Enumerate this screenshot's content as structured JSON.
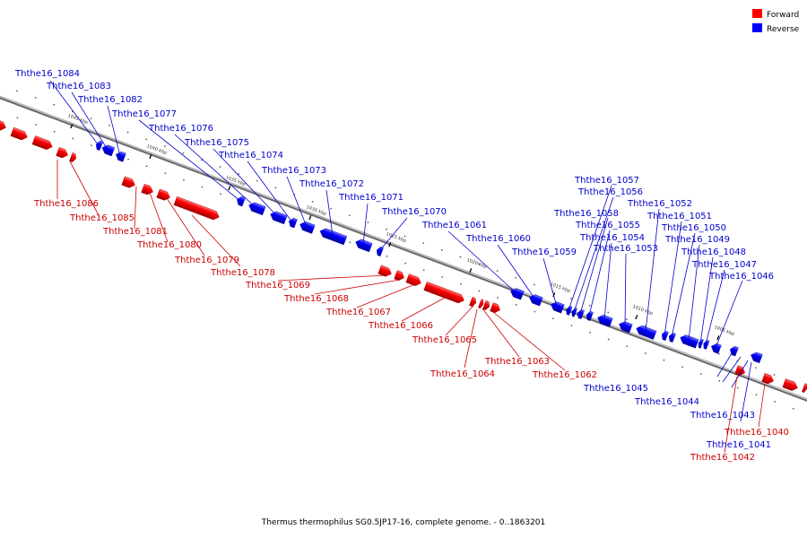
{
  "legend": [
    {
      "label": "Forward",
      "color": "#ff0000"
    },
    {
      "label": "Reverse",
      "color": "#0000ff"
    }
  ],
  "caption": "Thermus thermophilus SG0.5JP17-16, complete genome. - 0..1863201",
  "scale_ticks": [
    "1045 kbp",
    "1040 kbp",
    "1035 kbp",
    "1030 kbp",
    "1025 kbp",
    "1020 kbp",
    "1015 kbp",
    "1010 kbp",
    "1005 kbp"
  ],
  "genes": [
    {
      "name": "Ththe16_1084",
      "strand": "reverse"
    },
    {
      "name": "Ththe16_1083",
      "strand": "reverse"
    },
    {
      "name": "Ththe16_1082",
      "strand": "reverse"
    },
    {
      "name": "Ththe16_1077",
      "strand": "reverse"
    },
    {
      "name": "Ththe16_1076",
      "strand": "reverse"
    },
    {
      "name": "Ththe16_1075",
      "strand": "reverse"
    },
    {
      "name": "Ththe16_1074",
      "strand": "reverse"
    },
    {
      "name": "Ththe16_1073",
      "strand": "reverse"
    },
    {
      "name": "Ththe16_1072",
      "strand": "reverse"
    },
    {
      "name": "Ththe16_1071",
      "strand": "reverse"
    },
    {
      "name": "Ththe16_1070",
      "strand": "reverse"
    },
    {
      "name": "Ththe16_1061",
      "strand": "reverse"
    },
    {
      "name": "Ththe16_1060",
      "strand": "reverse"
    },
    {
      "name": "Ththe16_1059",
      "strand": "reverse"
    },
    {
      "name": "Ththe16_1057",
      "strand": "reverse"
    },
    {
      "name": "Ththe16_1056",
      "strand": "reverse"
    },
    {
      "name": "Ththe16_1058",
      "strand": "reverse"
    },
    {
      "name": "Ththe16_1055",
      "strand": "reverse"
    },
    {
      "name": "Ththe16_1054",
      "strand": "reverse"
    },
    {
      "name": "Ththe16_1053",
      "strand": "reverse"
    },
    {
      "name": "Ththe16_1052",
      "strand": "reverse"
    },
    {
      "name": "Ththe16_1051",
      "strand": "reverse"
    },
    {
      "name": "Ththe16_1050",
      "strand": "reverse"
    },
    {
      "name": "Ththe16_1049",
      "strand": "reverse"
    },
    {
      "name": "Ththe16_1048",
      "strand": "reverse"
    },
    {
      "name": "Ththe16_1047",
      "strand": "reverse"
    },
    {
      "name": "Ththe16_1046",
      "strand": "reverse"
    },
    {
      "name": "Ththe16_1045",
      "strand": "reverse"
    },
    {
      "name": "Ththe16_1044",
      "strand": "reverse"
    },
    {
      "name": "Ththe16_1043",
      "strand": "reverse"
    },
    {
      "name": "Ththe16_1041",
      "strand": "reverse"
    },
    {
      "name": "Ththe16_1086",
      "strand": "forward"
    },
    {
      "name": "Ththe16_1085",
      "strand": "forward"
    },
    {
      "name": "Ththe16_1081",
      "strand": "forward"
    },
    {
      "name": "Ththe16_1080",
      "strand": "forward"
    },
    {
      "name": "Ththe16_1079",
      "strand": "forward"
    },
    {
      "name": "Ththe16_1078",
      "strand": "forward"
    },
    {
      "name": "Ththe16_1069",
      "strand": "forward"
    },
    {
      "name": "Ththe16_1068",
      "strand": "forward"
    },
    {
      "name": "Ththe16_1067",
      "strand": "forward"
    },
    {
      "name": "Ththe16_1066",
      "strand": "forward"
    },
    {
      "name": "Ththe16_1065",
      "strand": "forward"
    },
    {
      "name": "Ththe16_1064",
      "strand": "forward"
    },
    {
      "name": "Ththe16_1063",
      "strand": "forward"
    },
    {
      "name": "Ththe16_1062",
      "strand": "forward"
    },
    {
      "name": "Ththe16_1040",
      "strand": "forward"
    },
    {
      "name": "Ththe16_1042",
      "strand": "forward"
    }
  ]
}
